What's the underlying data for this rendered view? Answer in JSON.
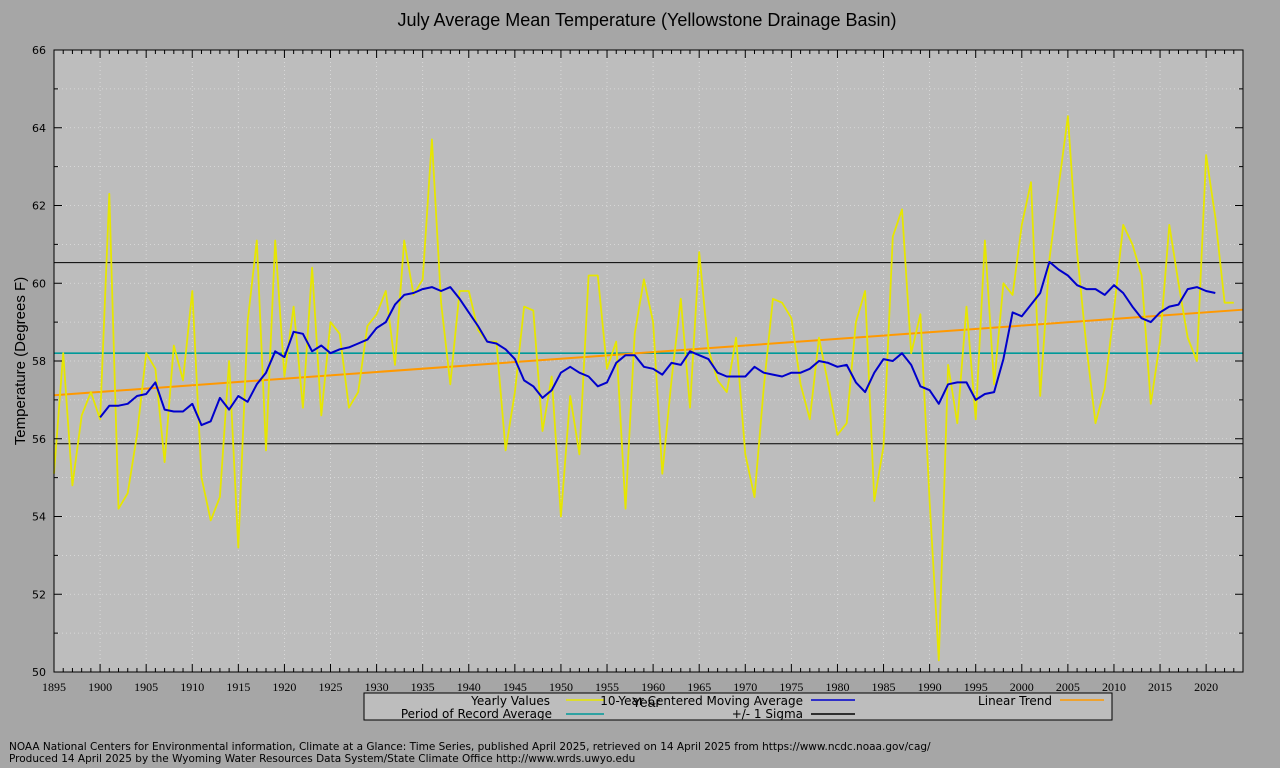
{
  "chart_data": {
    "type": "line",
    "title": "July Average Mean Temperature (Yellowstone Drainage Basin)",
    "xlabel": "Year",
    "ylabel": "Temperature (Degrees F)",
    "xlim": [
      1895,
      2024
    ],
    "ylim": [
      50,
      66
    ],
    "x_ticks": [
      1895,
      1900,
      1905,
      1910,
      1915,
      1920,
      1925,
      1930,
      1935,
      1940,
      1945,
      1950,
      1955,
      1960,
      1965,
      1970,
      1975,
      1980,
      1985,
      1990,
      1995,
      2000,
      2005,
      2010,
      2015,
      2020
    ],
    "y_ticks": [
      50,
      52,
      54,
      56,
      58,
      60,
      62,
      64,
      66
    ],
    "grid": true,
    "legend_position": "bottom",
    "series": [
      {
        "name": "Yearly Values",
        "color": "#e6e600",
        "start_year": 1895,
        "values": [
          55.1,
          58.2,
          54.8,
          56.6,
          57.2,
          56.5,
          62.3,
          54.2,
          54.6,
          56.1,
          58.2,
          57.8,
          55.4,
          58.4,
          57.5,
          59.8,
          55.0,
          53.9,
          54.5,
          58.0,
          53.2,
          59.0,
          61.1,
          55.7,
          61.1,
          57.6,
          59.4,
          56.8,
          60.4,
          56.6,
          59.0,
          58.7,
          56.8,
          57.2,
          58.9,
          59.2,
          59.8,
          57.9,
          61.1,
          59.7,
          60.1,
          63.7,
          59.5,
          57.4,
          59.8,
          59.8,
          58.8,
          58.5,
          58.5,
          55.7,
          57.2,
          59.4,
          59.3,
          56.2,
          57.6,
          54.0,
          57.1,
          55.6,
          60.2,
          60.2,
          57.8,
          58.5,
          54.2,
          58.7,
          60.1,
          59.0,
          55.1,
          57.5,
          59.6,
          56.8,
          60.8,
          58.3,
          57.5,
          57.2,
          58.6,
          55.6,
          54.5,
          57.3,
          59.6,
          59.5,
          59.1,
          57.4,
          56.5,
          58.6,
          57.4,
          56.1,
          56.4,
          59.0,
          59.8,
          54.4,
          55.8,
          61.2,
          61.9,
          58.2,
          59.2,
          54.4,
          50.3,
          57.9,
          56.4,
          59.4,
          56.5,
          61.1,
          57.4,
          60.0,
          59.7,
          61.5,
          62.6,
          57.1,
          60.6,
          62.5,
          64.3,
          60.8,
          58.4,
          56.4,
          57.3,
          59.3,
          61.5,
          61.0,
          60.2,
          56.9,
          58.5,
          61.5,
          60.0,
          58.6,
          58.0,
          63.3,
          61.7,
          59.5,
          59.5
        ]
      },
      {
        "name": "10-Year Centered Moving Average",
        "color": "#0000cc",
        "start_year": 1900,
        "values": [
          56.55,
          56.85,
          56.85,
          56.9,
          57.1,
          57.15,
          57.45,
          56.75,
          56.7,
          56.7,
          56.9,
          56.35,
          56.45,
          57.05,
          56.75,
          57.1,
          56.95,
          57.4,
          57.7,
          58.25,
          58.1,
          58.75,
          58.7,
          58.25,
          58.4,
          58.2,
          58.3,
          58.35,
          58.45,
          58.55,
          58.85,
          59.0,
          59.45,
          59.7,
          59.75,
          59.85,
          59.9,
          59.8,
          59.9,
          59.6,
          59.25,
          58.9,
          58.5,
          58.45,
          58.3,
          58.05,
          57.5,
          57.35,
          57.05,
          57.25,
          57.7,
          57.85,
          57.7,
          57.6,
          57.35,
          57.45,
          57.95,
          58.15,
          58.15,
          57.85,
          57.8,
          57.65,
          57.95,
          57.9,
          58.25,
          58.15,
          58.05,
          57.7,
          57.6,
          57.6,
          57.6,
          57.85,
          57.7,
          57.65,
          57.6,
          57.7,
          57.7,
          57.8,
          58.0,
          57.95,
          57.85,
          57.9,
          57.45,
          57.2,
          57.7,
          58.05,
          58.0,
          58.2,
          57.9,
          57.35,
          57.25,
          56.9,
          57.4,
          57.45,
          57.45,
          57.0,
          57.15,
          57.2,
          58.05,
          59.25,
          59.15,
          59.45,
          59.75,
          60.55,
          60.35,
          60.2,
          59.95,
          59.85,
          59.85,
          59.7,
          59.95,
          59.75,
          59.4,
          59.1,
          59.0,
          59.25,
          59.4,
          59.45,
          59.85,
          59.9,
          59.8,
          59.75
        ]
      },
      {
        "name": "Linear Trend",
        "color": "#ff9900",
        "x": [
          1895,
          2024
        ],
        "values": [
          57.12,
          59.32
        ]
      },
      {
        "name": "Period of Record Average",
        "color": "#009999",
        "value": 58.2
      },
      {
        "name": "+/- 1 Sigma",
        "color": "#000000",
        "values": [
          55.87,
          60.53
        ]
      }
    ]
  },
  "legend": {
    "items": [
      {
        "label": "Yearly Values",
        "color": "#e6e600"
      },
      {
        "label": "10-Year Centered Moving Average",
        "color": "#0000cc"
      },
      {
        "label": "Linear Trend",
        "color": "#ff9900"
      },
      {
        "label": "Period of Record Average",
        "color": "#009999"
      },
      {
        "label": "+/- 1 Sigma",
        "color": "#000000"
      }
    ]
  },
  "footer": {
    "line1": "NOAA National Centers for Environmental information, Climate at a Glance: Time Series, published April 2025, retrieved on 14 April 2025 from https://www.ncdc.noaa.gov/cag/",
    "line2": "Produced 14 April 2025 by the Wyoming Water Resources Data System/State Climate Office http://www.wrds.uwyo.edu"
  }
}
